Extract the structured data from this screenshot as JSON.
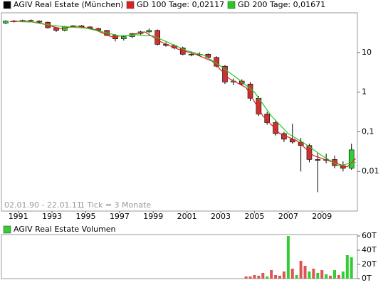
{
  "chart_data": [
    {
      "type": "candlestick",
      "candles": {
        "name": "AGIV Real Estate (München)",
        "color": "#000000",
        "up_color": "#33cc33",
        "down_color": "#cc3333",
        "x": [
          1990.25,
          1990.75,
          1991.25,
          1991.75,
          1992.25,
          1992.75,
          1993.25,
          1993.75,
          1994.25,
          1994.75,
          1995.25,
          1995.75,
          1996.25,
          1996.75,
          1997.25,
          1997.75,
          1998.25,
          1998.75,
          1999.25,
          1999.75,
          2000.25,
          2000.75,
          2001.25,
          2001.75,
          2002.25,
          2002.75,
          2003.25,
          2003.75,
          2004.25,
          2004.75,
          2005.25,
          2005.75,
          2006.25,
          2006.75,
          2007.25,
          2007.75,
          2008.25,
          2008.75,
          2009.25,
          2009.75,
          2010.25,
          2010.75
        ],
        "open": [
          55,
          62,
          60,
          64,
          62,
          58,
          42,
          36,
          45,
          47,
          44,
          40,
          36,
          27,
          22,
          25,
          30,
          33,
          36,
          16,
          15,
          13,
          9,
          9,
          9,
          7.5,
          4.5,
          1.8,
          1.9,
          1.6,
          0.7,
          0.28,
          0.17,
          0.09,
          0.065,
          0.055,
          0.045,
          0.02,
          0.019,
          0.02,
          0.014,
          0.012
        ],
        "high": [
          64,
          66,
          67,
          68,
          64,
          60,
          44,
          47,
          49,
          49,
          46,
          42,
          37,
          29,
          26,
          31,
          35,
          40,
          38,
          18,
          16,
          14,
          10.5,
          10,
          9.5,
          8,
          4.8,
          2.2,
          2.1,
          1.8,
          0.8,
          0.32,
          0.2,
          0.1,
          0.16,
          0.07,
          0.05,
          0.03,
          0.028,
          0.025,
          0.018,
          0.05
        ],
        "low": [
          52,
          57,
          58,
          60,
          56,
          40,
          33,
          34,
          42,
          42,
          38,
          34,
          26,
          19,
          20,
          23,
          28,
          31,
          15,
          14,
          12,
          8.5,
          8,
          8.2,
          7,
          4.2,
          1.6,
          1.5,
          1.5,
          0.6,
          0.25,
          0.15,
          0.08,
          0.055,
          0.05,
          0.01,
          0.017,
          0.003,
          0.016,
          0.012,
          0.01,
          0.011
        ],
        "close": [
          62,
          60,
          64,
          62,
          58,
          42,
          36,
          45,
          47,
          44,
          40,
          36,
          27,
          22,
          25,
          30,
          33,
          36,
          16,
          15,
          13,
          9,
          9,
          9,
          7.5,
          4.5,
          1.8,
          1.9,
          1.6,
          0.7,
          0.28,
          0.17,
          0.09,
          0.065,
          0.055,
          0.045,
          0.02,
          0.019,
          0.02,
          0.014,
          0.012,
          0.035
        ]
      },
      "lines": [
        {
          "name": "GD 100 Tage: 0,02117",
          "color": "#dd2222",
          "x": [
            1990.5,
            1991.5,
            1992.5,
            1993.5,
            1994.5,
            1995.5,
            1996.5,
            1997.5,
            1998.5,
            1999.5,
            2000.5,
            2001.5,
            2002.5,
            2003.5,
            2004.5,
            2005.5,
            2006.5,
            2007.5,
            2008.5,
            2009.5,
            2010.5,
            2011
          ],
          "values": [
            60,
            62,
            52,
            40,
            46,
            38,
            25,
            27,
            33,
            18,
            12,
            9,
            6,
            2.2,
            1.3,
            0.25,
            0.09,
            0.06,
            0.025,
            0.018,
            0.013,
            0.021
          ]
        },
        {
          "name": "GD 200 Tage: 0,01671",
          "color": "#22cc22",
          "x": [
            1991,
            1992,
            1993,
            1994,
            1995,
            1996,
            1997,
            1998,
            1999,
            2000,
            2001,
            2002,
            2003,
            2004,
            2005,
            2006,
            2007,
            2008,
            2009,
            2010,
            2011
          ],
          "values": [
            60,
            58,
            48,
            44,
            41,
            33,
            26,
            28,
            26,
            17,
            11,
            8.5,
            4.5,
            2.2,
            1.0,
            0.25,
            0.09,
            0.05,
            0.025,
            0.014,
            0.017
          ]
        }
      ],
      "xlim": [
        1990,
        2011.1
      ],
      "xticks": [
        1991,
        1993,
        1995,
        1997,
        1999,
        2001,
        2003,
        2005,
        2007,
        2009
      ],
      "ylim": [
        0.001,
        100
      ],
      "log_y": true,
      "yticks": [
        10,
        1,
        {
          "value": 0.1,
          "label": "0,1"
        },
        {
          "value": 0.01,
          "label": "0,01"
        }
      ],
      "annotations": [
        "02.01.90 - 22.01.11",
        "1 Tick = 3 Monate"
      ]
    },
    {
      "type": "bar",
      "series": [
        {
          "name": "AGIV Real Estate Volumen",
          "color": "#33cc33",
          "x": [
            2004.5,
            2004.75,
            2005,
            2005.25,
            2005.5,
            2005.75,
            2006,
            2006.25,
            2006.5,
            2006.75,
            2007,
            2007.25,
            2007.5,
            2007.75,
            2008,
            2008.25,
            2008.5,
            2008.75,
            2009,
            2009.25,
            2009.5,
            2009.75,
            2010,
            2010.25,
            2010.5,
            2010.75
          ],
          "values": [
            3000,
            3000,
            5000,
            4000,
            8000,
            3000,
            12000,
            5000,
            4000,
            10000,
            60000,
            14000,
            5000,
            25000,
            18000,
            10000,
            14000,
            8000,
            12000,
            6000,
            4000,
            12000,
            5000,
            10000,
            33000,
            30000
          ],
          "colors": [
            "#dd5555",
            "#dd5555",
            "#dd5555",
            "#dd5555",
            "#dd5555",
            "#33cc33",
            "#dd5555",
            "#dd5555",
            "#dd5555",
            "#dd5555",
            "#33cc33",
            "#dd5555",
            "#33cc33",
            "#dd5555",
            "#dd5555",
            "#33cc33",
            "#dd5555",
            "#33cc33",
            "#dd5555",
            "#33cc33",
            "#dd5555",
            "#33cc33",
            "#dd5555",
            "#33cc33",
            "#33cc33",
            "#33cc33"
          ]
        }
      ],
      "xlim": [
        1990,
        2011.1
      ],
      "ylim": [
        0,
        62000
      ],
      "yticks": [
        {
          "value": 0,
          "label": "0T"
        },
        {
          "value": 20000,
          "label": "20T"
        },
        {
          "value": 40000,
          "label": "40T"
        },
        {
          "value": 60000,
          "label": "60T"
        }
      ]
    }
  ]
}
